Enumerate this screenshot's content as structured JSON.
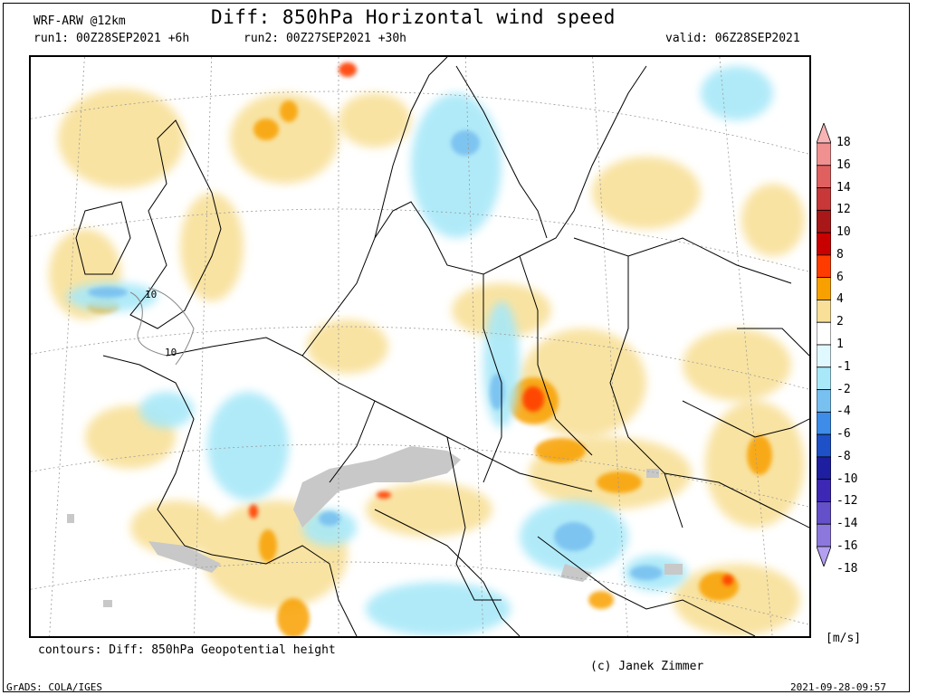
{
  "header": {
    "model": "WRF-ARW @12km",
    "title": "Diff: 850hPa Horizontal wind speed",
    "run1": "run1: 00Z28SEP2021 +6h",
    "run2": "run2: 00Z27SEP2021 +30h",
    "valid": "valid: 06Z28SEP2021"
  },
  "map": {
    "contour_labels": [
      "10",
      "10"
    ]
  },
  "colorbar": {
    "labels": [
      "18",
      "16",
      "14",
      "12",
      "10",
      "8",
      "6",
      "4",
      "2",
      "1",
      "-1",
      "-2",
      "-4",
      "-6",
      "-8",
      "-10",
      "-12",
      "-14",
      "-16",
      "-18"
    ],
    "colors": [
      "#f8b4b4",
      "#f09090",
      "#e06060",
      "#c83838",
      "#a81818",
      "#c80000",
      "#ff3c00",
      "#f8a000",
      "#f8e098",
      "#ffffff",
      "#e0f8ff",
      "#a8e8f8",
      "#78c0f0",
      "#3c8ce8",
      "#1e50c8",
      "#1e1ea0",
      "#3c28b4",
      "#6450c8",
      "#8c78dc",
      "#b4a0f0"
    ],
    "unit": "[m/s]"
  },
  "footer": {
    "contours": "contours: Diff: 850hPa Geopotential height",
    "credit": "(c) Janek Zimmer",
    "software": "GrADS: COLA/IGES",
    "timestamp": "2021-09-28-09:57"
  }
}
